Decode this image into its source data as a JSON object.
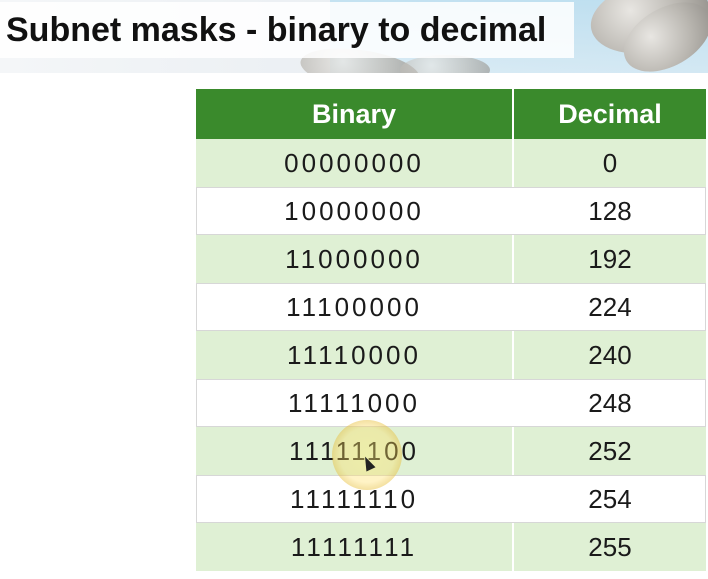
{
  "header": {
    "title": "Subnet masks - binary to decimal"
  },
  "table": {
    "columns": [
      "Binary",
      "Decimal"
    ],
    "rows": [
      {
        "binary": "00000000",
        "decimal": "0"
      },
      {
        "binary": "10000000",
        "decimal": "128"
      },
      {
        "binary": "11000000",
        "decimal": "192"
      },
      {
        "binary": "11100000",
        "decimal": "224"
      },
      {
        "binary": "11110000",
        "decimal": "240"
      },
      {
        "binary": "11111000",
        "decimal": "248"
      },
      {
        "binary": "11111100",
        "decimal": "252"
      },
      {
        "binary": "11111110",
        "decimal": "254"
      },
      {
        "binary": "11111111",
        "decimal": "255"
      }
    ]
  },
  "colors": {
    "header_green": "#3a8a2c",
    "row_light_green": "#dff0d4",
    "row_white": "#ffffff"
  },
  "icons": {
    "cursor": "mouse-pointer-icon",
    "decoration": "stones-image"
  }
}
